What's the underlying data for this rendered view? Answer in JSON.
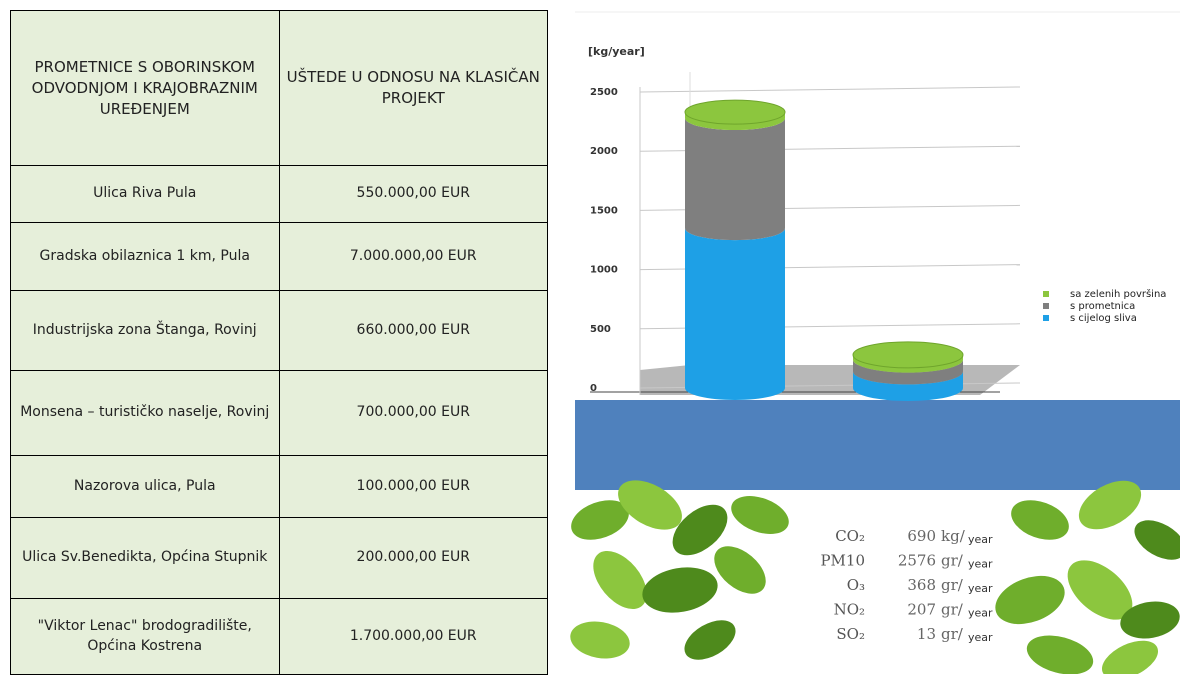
{
  "table": {
    "header": [
      "PROMETNICE S OBORINSKOM ODVODNJOM I KRAJOBRAZNIM UREĐENJEM",
      "UŠTEDE U ODNOSU NA KLASIČAN PROJEKT"
    ],
    "rows": [
      [
        "Ulica Riva Pula",
        "550.000,00 EUR"
      ],
      [
        "Gradska obilaznica 1 km, Pula",
        "7.000.000,00 EUR"
      ],
      [
        "Industrijska zona Štanga, Rovinj",
        "660.000,00 EUR"
      ],
      [
        "Monsena – turističko naselje, Rovinj",
        "700.000,00 EUR"
      ],
      [
        "Nazorova ulica, Pula",
        "100.000,00 EUR"
      ],
      [
        "Ulica Sv.Benedikta, Općina Stupnik",
        "200.000,00 EUR"
      ],
      [
        "\"Viktor Lenac\" brodogradilište, Općina Kostrena",
        "1.700.000,00 EUR"
      ]
    ]
  },
  "chart_data": {
    "type": "stacked-cylinder",
    "y_label": "[kg/year]",
    "ylim": [
      0,
      2500
    ],
    "yticks": [
      0,
      500,
      1000,
      1500,
      2000,
      2500
    ],
    "grid": true,
    "series": [
      {
        "name": "s cijelog sliva",
        "color": "#1ea0e6",
        "values": [
          1350,
          140
        ]
      },
      {
        "name": "s prometnica",
        "color": "#7f7f7f",
        "values": [
          930,
          100
        ]
      },
      {
        "name": "sa zelenih površina",
        "color": "#8cc63e",
        "values": [
          50,
          40
        ]
      }
    ]
  },
  "pollutants": [
    {
      "name": "CO₂",
      "value": 690,
      "unit": "kg/",
      "period": "year"
    },
    {
      "name": "PM10",
      "value": 2576,
      "unit": "gr/",
      "period": "year"
    },
    {
      "name": "O₃",
      "value": 368,
      "unit": "gr/",
      "period": "year"
    },
    {
      "name": "NO₂",
      "value": 207,
      "unit": "gr/",
      "period": "year"
    },
    {
      "name": "SO₂",
      "value": 13,
      "unit": "gr/",
      "period": "year"
    }
  ]
}
